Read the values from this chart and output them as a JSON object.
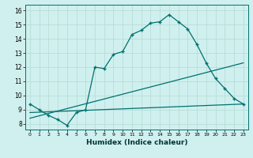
{
  "xlabel": "Humidex (Indice chaleur)",
  "bg_color": "#cff0ee",
  "grid_color": "#b8ddd8",
  "line_color": "#007070",
  "xlim": [
    -0.5,
    23.5
  ],
  "ylim": [
    7.6,
    16.4
  ],
  "xticks": [
    0,
    1,
    2,
    3,
    4,
    5,
    6,
    7,
    8,
    9,
    10,
    11,
    12,
    13,
    14,
    15,
    16,
    17,
    18,
    19,
    20,
    21,
    22,
    23
  ],
  "yticks": [
    8,
    9,
    10,
    11,
    12,
    13,
    14,
    15,
    16
  ],
  "line1_x": [
    0,
    1,
    2,
    3,
    4,
    5,
    6,
    7,
    8,
    9,
    10,
    11,
    12,
    13,
    14,
    15,
    16,
    17,
    18,
    19,
    20,
    21,
    22,
    23
  ],
  "line1_y": [
    9.4,
    9.0,
    8.6,
    8.3,
    7.9,
    8.8,
    9.0,
    12.0,
    11.9,
    12.9,
    13.1,
    14.3,
    14.6,
    15.1,
    15.2,
    15.7,
    15.2,
    14.7,
    13.6,
    12.3,
    11.2,
    10.5,
    9.8,
    9.4
  ],
  "line2_x": [
    0,
    23
  ],
  "line2_y": [
    8.8,
    9.4
  ],
  "line3_x": [
    0,
    23
  ],
  "line3_y": [
    8.4,
    12.3
  ]
}
